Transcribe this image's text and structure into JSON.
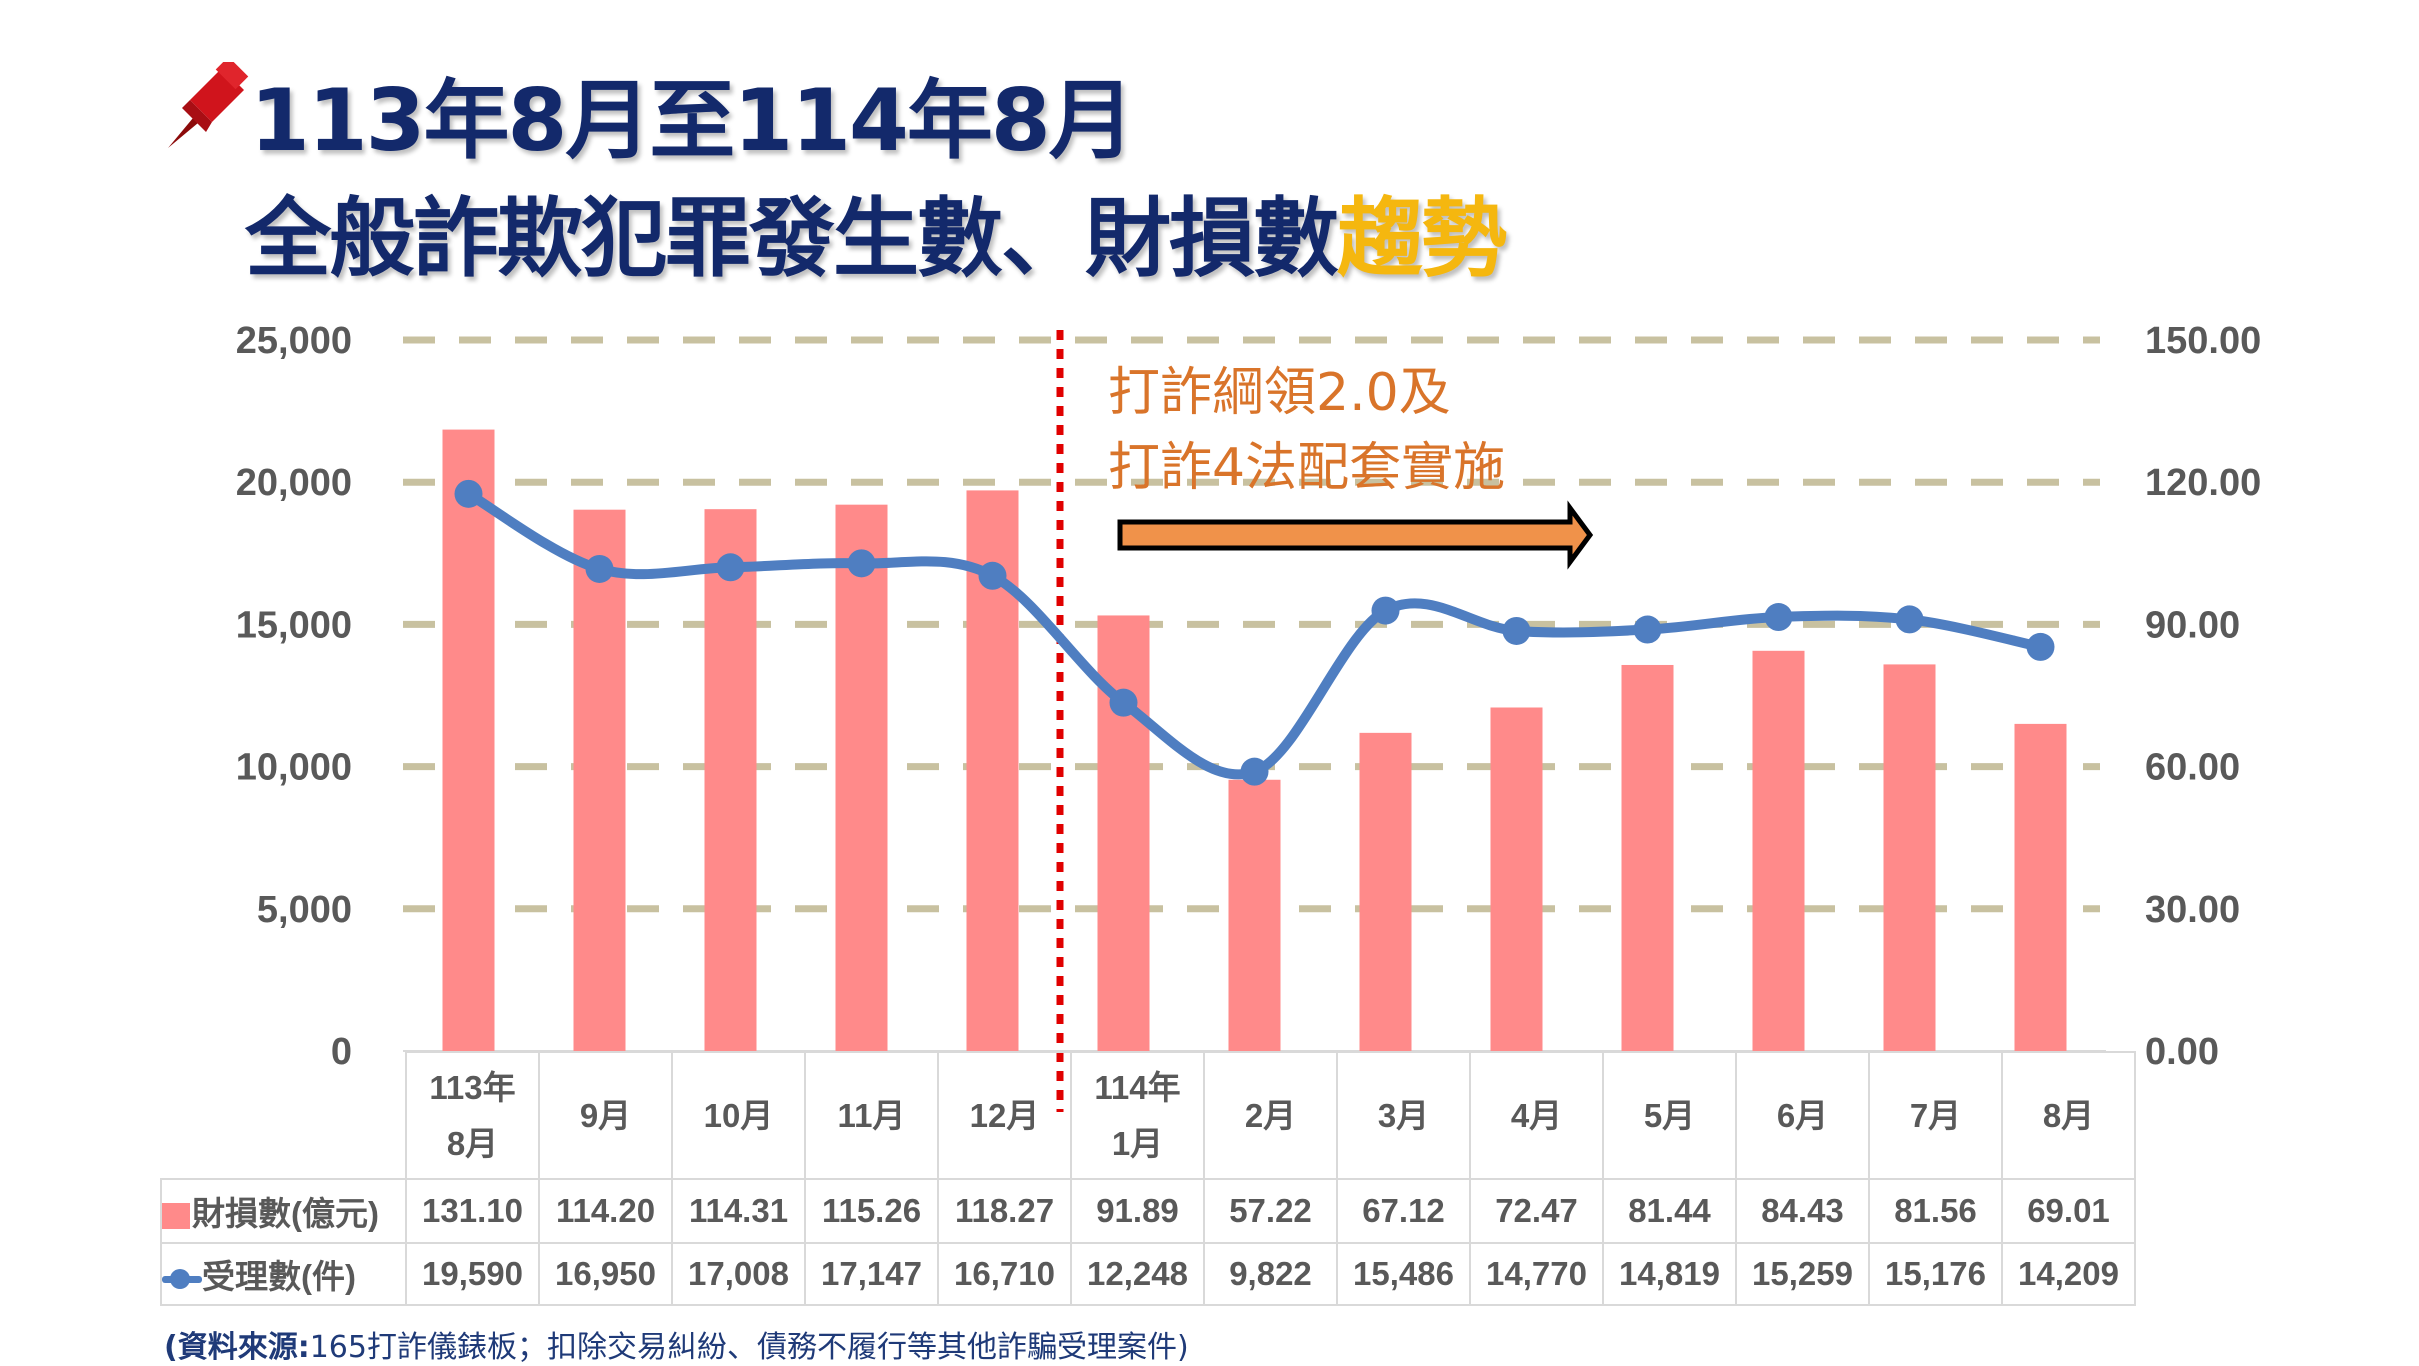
{
  "title": {
    "line1": "113年8月至114年8月",
    "line2_main": "全般詐欺犯罪發生數、財損數",
    "line2_highlight": "趨勢"
  },
  "annotation": {
    "line1": "打詐綱領2.0及",
    "line2": "打詐4法配套實施"
  },
  "source": {
    "label": "(資料來源:",
    "text": "165打詐儀錶板；扣除交易糾紛、債務不履行等其他詐騙受理案件)"
  },
  "chart_data": {
    "type": "bar+line",
    "categories": [
      "113年\n8月",
      "9月",
      "10月",
      "11月",
      "12月",
      "114年\n1月",
      "2月",
      "3月",
      "4月",
      "5月",
      "6月",
      "7月",
      "8月"
    ],
    "series": [
      {
        "name": "財損數(億元)",
        "type": "bar",
        "axis": "right",
        "color": "#ff8a8a",
        "values": [
          131.1,
          114.2,
          114.31,
          115.26,
          118.27,
          91.89,
          57.22,
          67.12,
          72.47,
          81.44,
          84.43,
          81.56,
          69.01
        ],
        "labels": [
          "131.10",
          "114.20",
          "114.31",
          "115.26",
          "118.27",
          "91.89",
          "57.22",
          "67.12",
          "72.47",
          "81.44",
          "84.43",
          "81.56",
          "69.01"
        ]
      },
      {
        "name": "受理數(件)",
        "type": "line",
        "axis": "left",
        "color": "#4f7ec1",
        "values": [
          19590,
          16950,
          17008,
          17147,
          16710,
          12248,
          9822,
          15486,
          14770,
          14819,
          15259,
          15176,
          14209
        ],
        "labels": [
          "19,590",
          "16,950",
          "17,008",
          "17,147",
          "16,710",
          "12,248",
          "9,822",
          "15,486",
          "14,770",
          "14,819",
          "15,259",
          "15,176",
          "14,209"
        ]
      }
    ],
    "y_left": {
      "lim": [
        0,
        25000
      ],
      "ticks": [
        "0",
        "5,000",
        "10,000",
        "15,000",
        "20,000",
        "25,000"
      ]
    },
    "y_right": {
      "lim": [
        0,
        150
      ],
      "ticks": [
        "0.00",
        "30.00",
        "60.00",
        "90.00",
        "120.00",
        "150.00"
      ]
    },
    "grid": "dashed horizontal",
    "gridline_color": "#c8c1a0",
    "marker_line_color": "#e00000",
    "legend": "data table"
  }
}
